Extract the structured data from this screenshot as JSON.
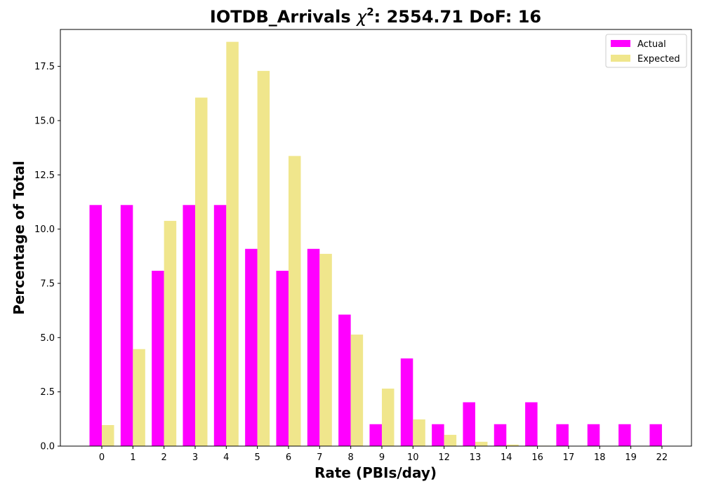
{
  "chart_data": {
    "type": "bar",
    "title_prefix": "IOTDB_Arrivals ",
    "title_chi": "χ",
    "title_sup": "2",
    "title_suffix": ": 2554.71 DoF: 16",
    "xlabel": "Rate (PBIs/day)",
    "ylabel": "Percentage of Total",
    "categories": [
      "0",
      "1",
      "2",
      "3",
      "4",
      "5",
      "6",
      "7",
      "8",
      "9",
      "10",
      "12",
      "13",
      "14",
      "16",
      "17",
      "18",
      "19",
      "22"
    ],
    "ylim": [
      0,
      19.2
    ],
    "yticks": [
      0.0,
      2.5,
      5.0,
      7.5,
      10.0,
      12.5,
      15.0,
      17.5
    ],
    "ytick_labels": [
      "0.0",
      "2.5",
      "5.0",
      "7.5",
      "10.0",
      "12.5",
      "15.0",
      "17.5"
    ],
    "legend_position": "top-right",
    "grid": false,
    "series": [
      {
        "name": "Actual",
        "color": "#ff00ff",
        "values": [
          11.11,
          11.11,
          8.08,
          11.11,
          11.11,
          9.09,
          8.08,
          9.09,
          6.06,
          1.01,
          4.04,
          1.01,
          2.02,
          1.01,
          2.02,
          1.01,
          1.01,
          1.01,
          1.01
        ]
      },
      {
        "name": "Expected",
        "color": "#f0e68c",
        "values": [
          0.97,
          4.47,
          10.38,
          16.06,
          18.63,
          17.29,
          13.37,
          8.86,
          5.14,
          2.65,
          1.23,
          0.52,
          0.2,
          0.07,
          0.02,
          0.01,
          0.0,
          0.0,
          0.0
        ]
      }
    ]
  }
}
